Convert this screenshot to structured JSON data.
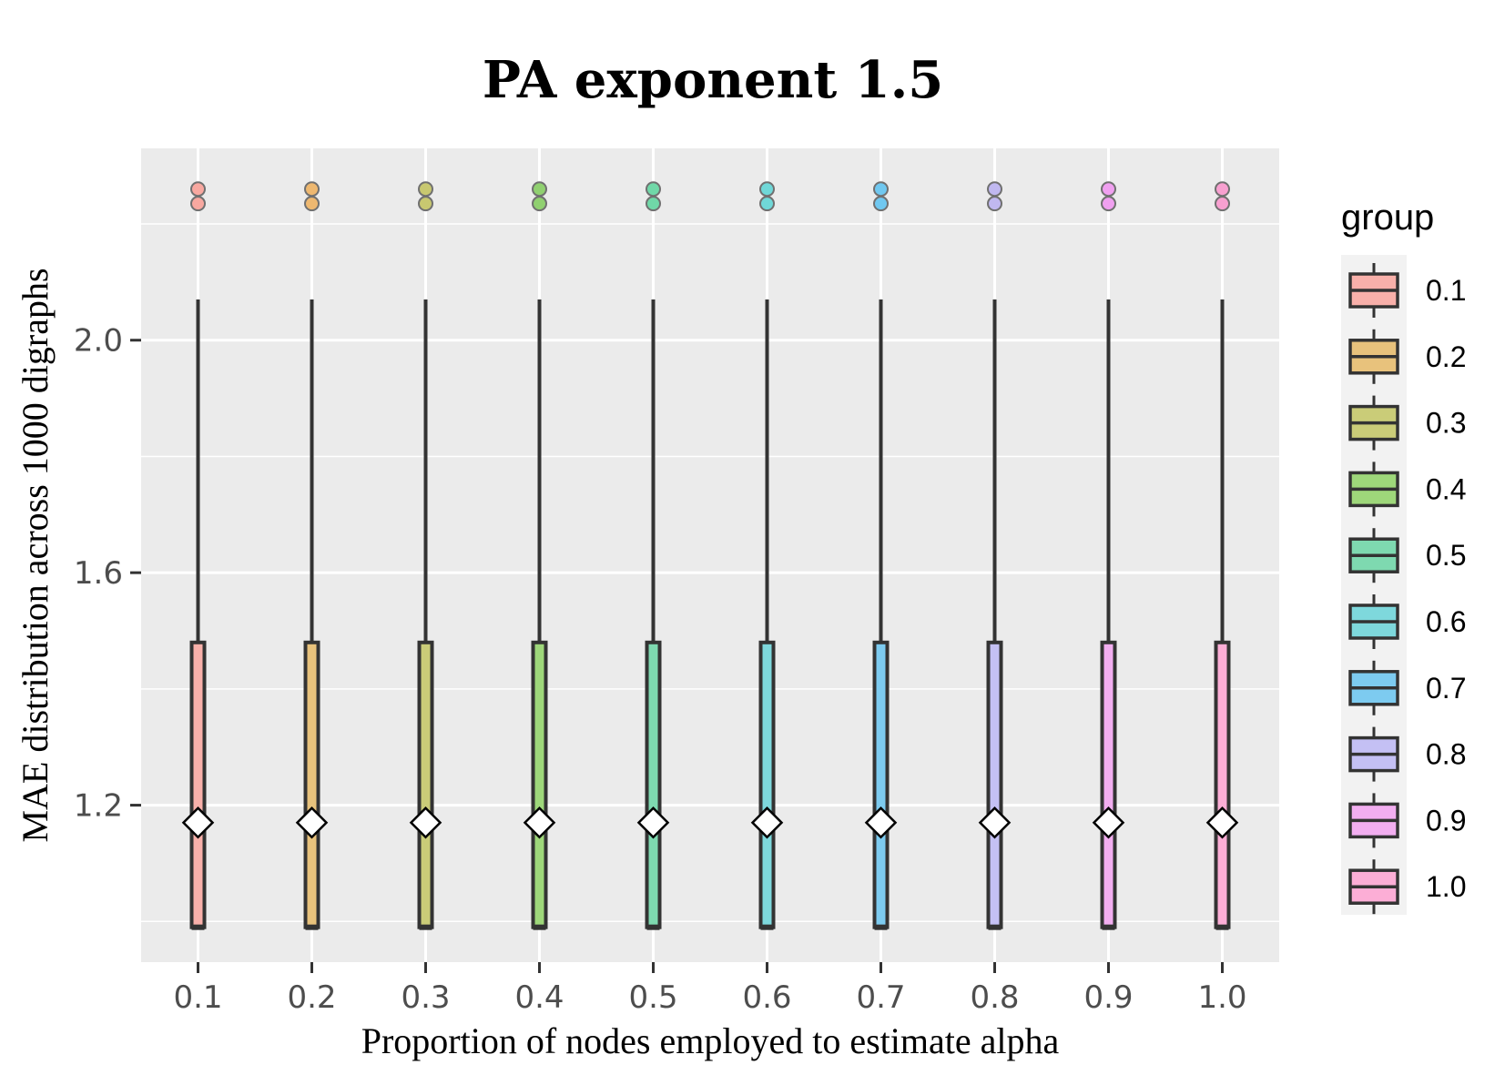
{
  "chart_data": {
    "type": "box",
    "title": "PA exponent 1.5",
    "xlabel": "Proportion of nodes employed to estimate alpha",
    "ylabel": "MAE distribution across 1000 digraphs",
    "categories": [
      "0.1",
      "0.2",
      "0.3",
      "0.4",
      "0.5",
      "0.6",
      "0.7",
      "0.8",
      "0.9",
      "1.0"
    ],
    "ylim": [
      0.93,
      2.33
    ],
    "yticks": [
      1.2,
      1.6,
      2.0
    ],
    "ytick_labels": [
      "1.2",
      "1.6",
      "2.0"
    ],
    "grid": true,
    "legend": {
      "title": "group",
      "position": "right",
      "labels": [
        "0.1",
        "0.2",
        "0.3",
        "0.4",
        "0.5",
        "0.6",
        "0.7",
        "0.8",
        "0.9",
        "1.0"
      ]
    },
    "colors": [
      "#F8B0AA",
      "#E8C27C",
      "#CACC78",
      "#9ED77A",
      "#7ED9B0",
      "#7ED8DC",
      "#7DCBF0",
      "#C4C0F4",
      "#F2AEF0",
      "#FCAED6"
    ],
    "outlier_colors": [
      "#F8A8A0",
      "#EEB870",
      "#C8C870",
      "#90D070",
      "#70D8A8",
      "#70D8D8",
      "#70C8F0",
      "#C0B8F0",
      "#F0A0F0",
      "#F8A0D0"
    ],
    "series": [
      {
        "name": "MAE",
        "min": 0.99,
        "q1": 0.99,
        "median": 0.99,
        "q3": 1.48,
        "max": 2.07,
        "mean": 1.17,
        "outliers": [
          2.235,
          2.26
        ]
      }
    ]
  }
}
